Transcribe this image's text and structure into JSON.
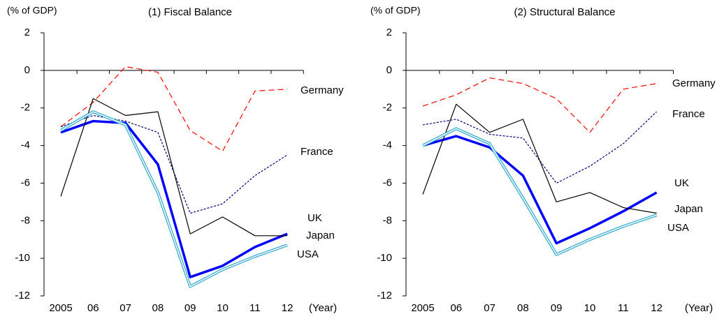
{
  "chart_data": [
    {
      "type": "line",
      "title": "(1) Fiscal Balance",
      "y_label": "(% of GDP)",
      "x_label": "(Year)",
      "categories": [
        "2005",
        "06",
        "07",
        "08",
        "09",
        "10",
        "11",
        "12"
      ],
      "ylim": [
        -12,
        2
      ],
      "yticks": [
        -12,
        -10,
        -8,
        -6,
        -4,
        -2,
        0,
        2
      ],
      "series": [
        {
          "name": "Germany",
          "color": "#ff0000",
          "values": [
            -3.0,
            -1.7,
            0.2,
            -0.1,
            -3.2,
            -4.3,
            -1.1,
            -1.0
          ]
        },
        {
          "name": "France",
          "color": "#000080",
          "values": [
            -3.0,
            -2.4,
            -2.7,
            -3.3,
            -7.6,
            -7.1,
            -5.6,
            -4.5
          ]
        },
        {
          "name": "UK",
          "color": "#0000ff",
          "values": [
            -3.3,
            -2.7,
            -2.8,
            -5.0,
            -11.0,
            -10.4,
            -9.4,
            -8.7
          ]
        },
        {
          "name": "Japan",
          "color": "#000000",
          "values": [
            -6.7,
            -1.5,
            -2.4,
            -2.2,
            -8.7,
            -7.8,
            -8.8,
            -8.8
          ]
        },
        {
          "name": "USA",
          "color": "#33aacc",
          "values": [
            -3.2,
            -2.2,
            -2.9,
            -6.5,
            -11.5,
            -10.6,
            -9.9,
            -9.3
          ]
        }
      ]
    },
    {
      "type": "line",
      "title": "(2) Structural Balance",
      "y_label": "(% of GDP)",
      "x_label": "(Year)",
      "categories": [
        "2005",
        "06",
        "07",
        "08",
        "09",
        "10",
        "11",
        "12"
      ],
      "ylim": [
        -12,
        2
      ],
      "yticks": [
        -12,
        -10,
        -8,
        -6,
        -4,
        -2,
        0,
        2
      ],
      "series": [
        {
          "name": "Germany",
          "color": "#ff0000",
          "values": [
            -1.9,
            -1.3,
            -0.4,
            -0.7,
            -1.5,
            -3.3,
            -1.0,
            -0.7
          ]
        },
        {
          "name": "France",
          "color": "#000080",
          "values": [
            -2.9,
            -2.6,
            -3.4,
            -3.6,
            -6.0,
            -5.1,
            -3.9,
            -2.2
          ]
        },
        {
          "name": "UK",
          "color": "#0000ff",
          "values": [
            -4.0,
            -3.5,
            -4.1,
            -5.6,
            -9.2,
            -8.4,
            -7.5,
            -6.5
          ]
        },
        {
          "name": "Japan",
          "color": "#000000",
          "values": [
            -6.6,
            -1.8,
            -3.3,
            -2.6,
            -7.0,
            -6.5,
            -7.3,
            -7.6
          ]
        },
        {
          "name": "USA",
          "color": "#33aacc",
          "values": [
            -4.0,
            -3.1,
            -3.9,
            -6.8,
            -9.8,
            -9.0,
            -8.3,
            -7.7
          ]
        }
      ]
    }
  ]
}
